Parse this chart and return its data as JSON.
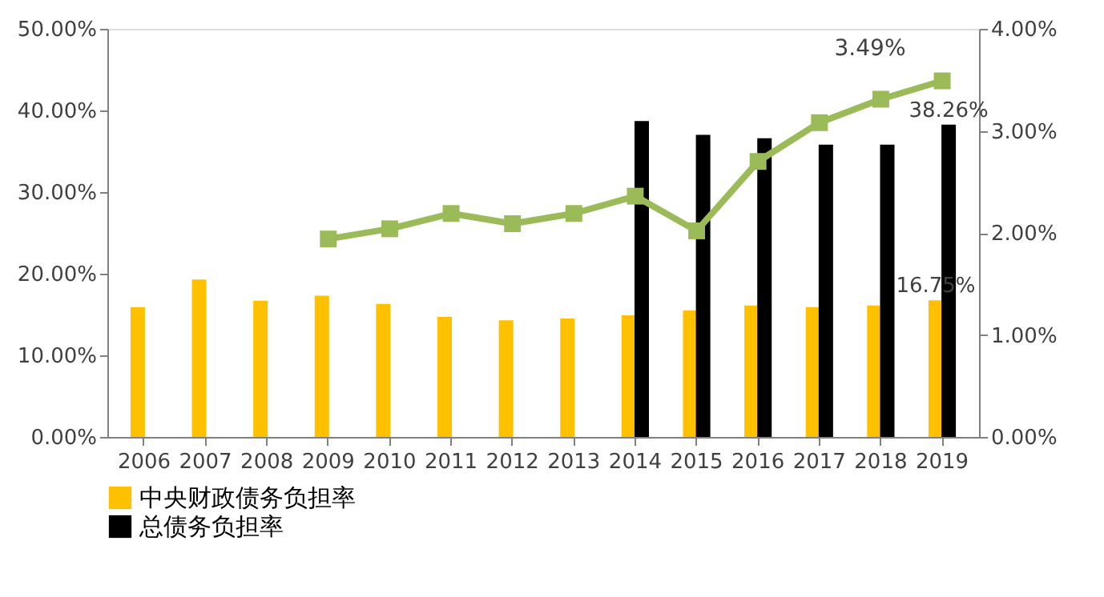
{
  "chart_data": {
    "type": "bar",
    "categories": [
      "2006",
      "2007",
      "2008",
      "2009",
      "2010",
      "2011",
      "2012",
      "2013",
      "2014",
      "2015",
      "2016",
      "2017",
      "2018",
      "2019"
    ],
    "series": [
      {
        "name": "中央财政债务负担率",
        "color": "#ffc000",
        "values": [
          15.9,
          19.3,
          16.7,
          17.3,
          16.3,
          14.7,
          14.3,
          14.5,
          14.9,
          15.5,
          16.1,
          15.9,
          16.1,
          16.75
        ],
        "value_labels": [
          null,
          null,
          null,
          null,
          null,
          null,
          null,
          null,
          null,
          null,
          null,
          null,
          null,
          "16.75%"
        ]
      },
      {
        "name": "总债务负担率",
        "color": "#000000",
        "values": [
          null,
          null,
          null,
          null,
          null,
          null,
          null,
          null,
          38.7,
          37.0,
          36.6,
          35.8,
          35.8,
          38.26
        ],
        "value_labels": [
          null,
          null,
          null,
          null,
          null,
          null,
          null,
          null,
          null,
          null,
          null,
          null,
          null,
          "38.26%"
        ]
      },
      {
        "type": "line",
        "axis": "y2",
        "color": "#9bbb59",
        "marker": "square",
        "values": [
          null,
          null,
          null,
          1.94,
          2.04,
          2.19,
          2.09,
          2.19,
          2.36,
          2.02,
          2.7,
          3.08,
          3.31,
          3.49
        ],
        "value_labels": [
          null,
          null,
          null,
          null,
          null,
          null,
          null,
          null,
          null,
          null,
          null,
          null,
          null,
          "3.49%"
        ]
      }
    ],
    "ylim": [
      0,
      50
    ],
    "yticks": [
      {
        "value": 0,
        "label": "0.00%"
      },
      {
        "value": 10,
        "label": "10.00%"
      },
      {
        "value": 20,
        "label": "20.00%"
      },
      {
        "value": 30,
        "label": "30.00%"
      },
      {
        "value": 40,
        "label": "40.00%"
      },
      {
        "value": 50,
        "label": "50.00%"
      }
    ],
    "y2lim": [
      0,
      4
    ],
    "y2ticks": [
      {
        "value": 0,
        "label": "0.00%"
      },
      {
        "value": 1,
        "label": "1.00%"
      },
      {
        "value": 2,
        "label": "2.00%"
      },
      {
        "value": 3,
        "label": "3.00%"
      },
      {
        "value": 4,
        "label": "4.00%"
      }
    ],
    "grid": false,
    "legend": "bottom left"
  }
}
